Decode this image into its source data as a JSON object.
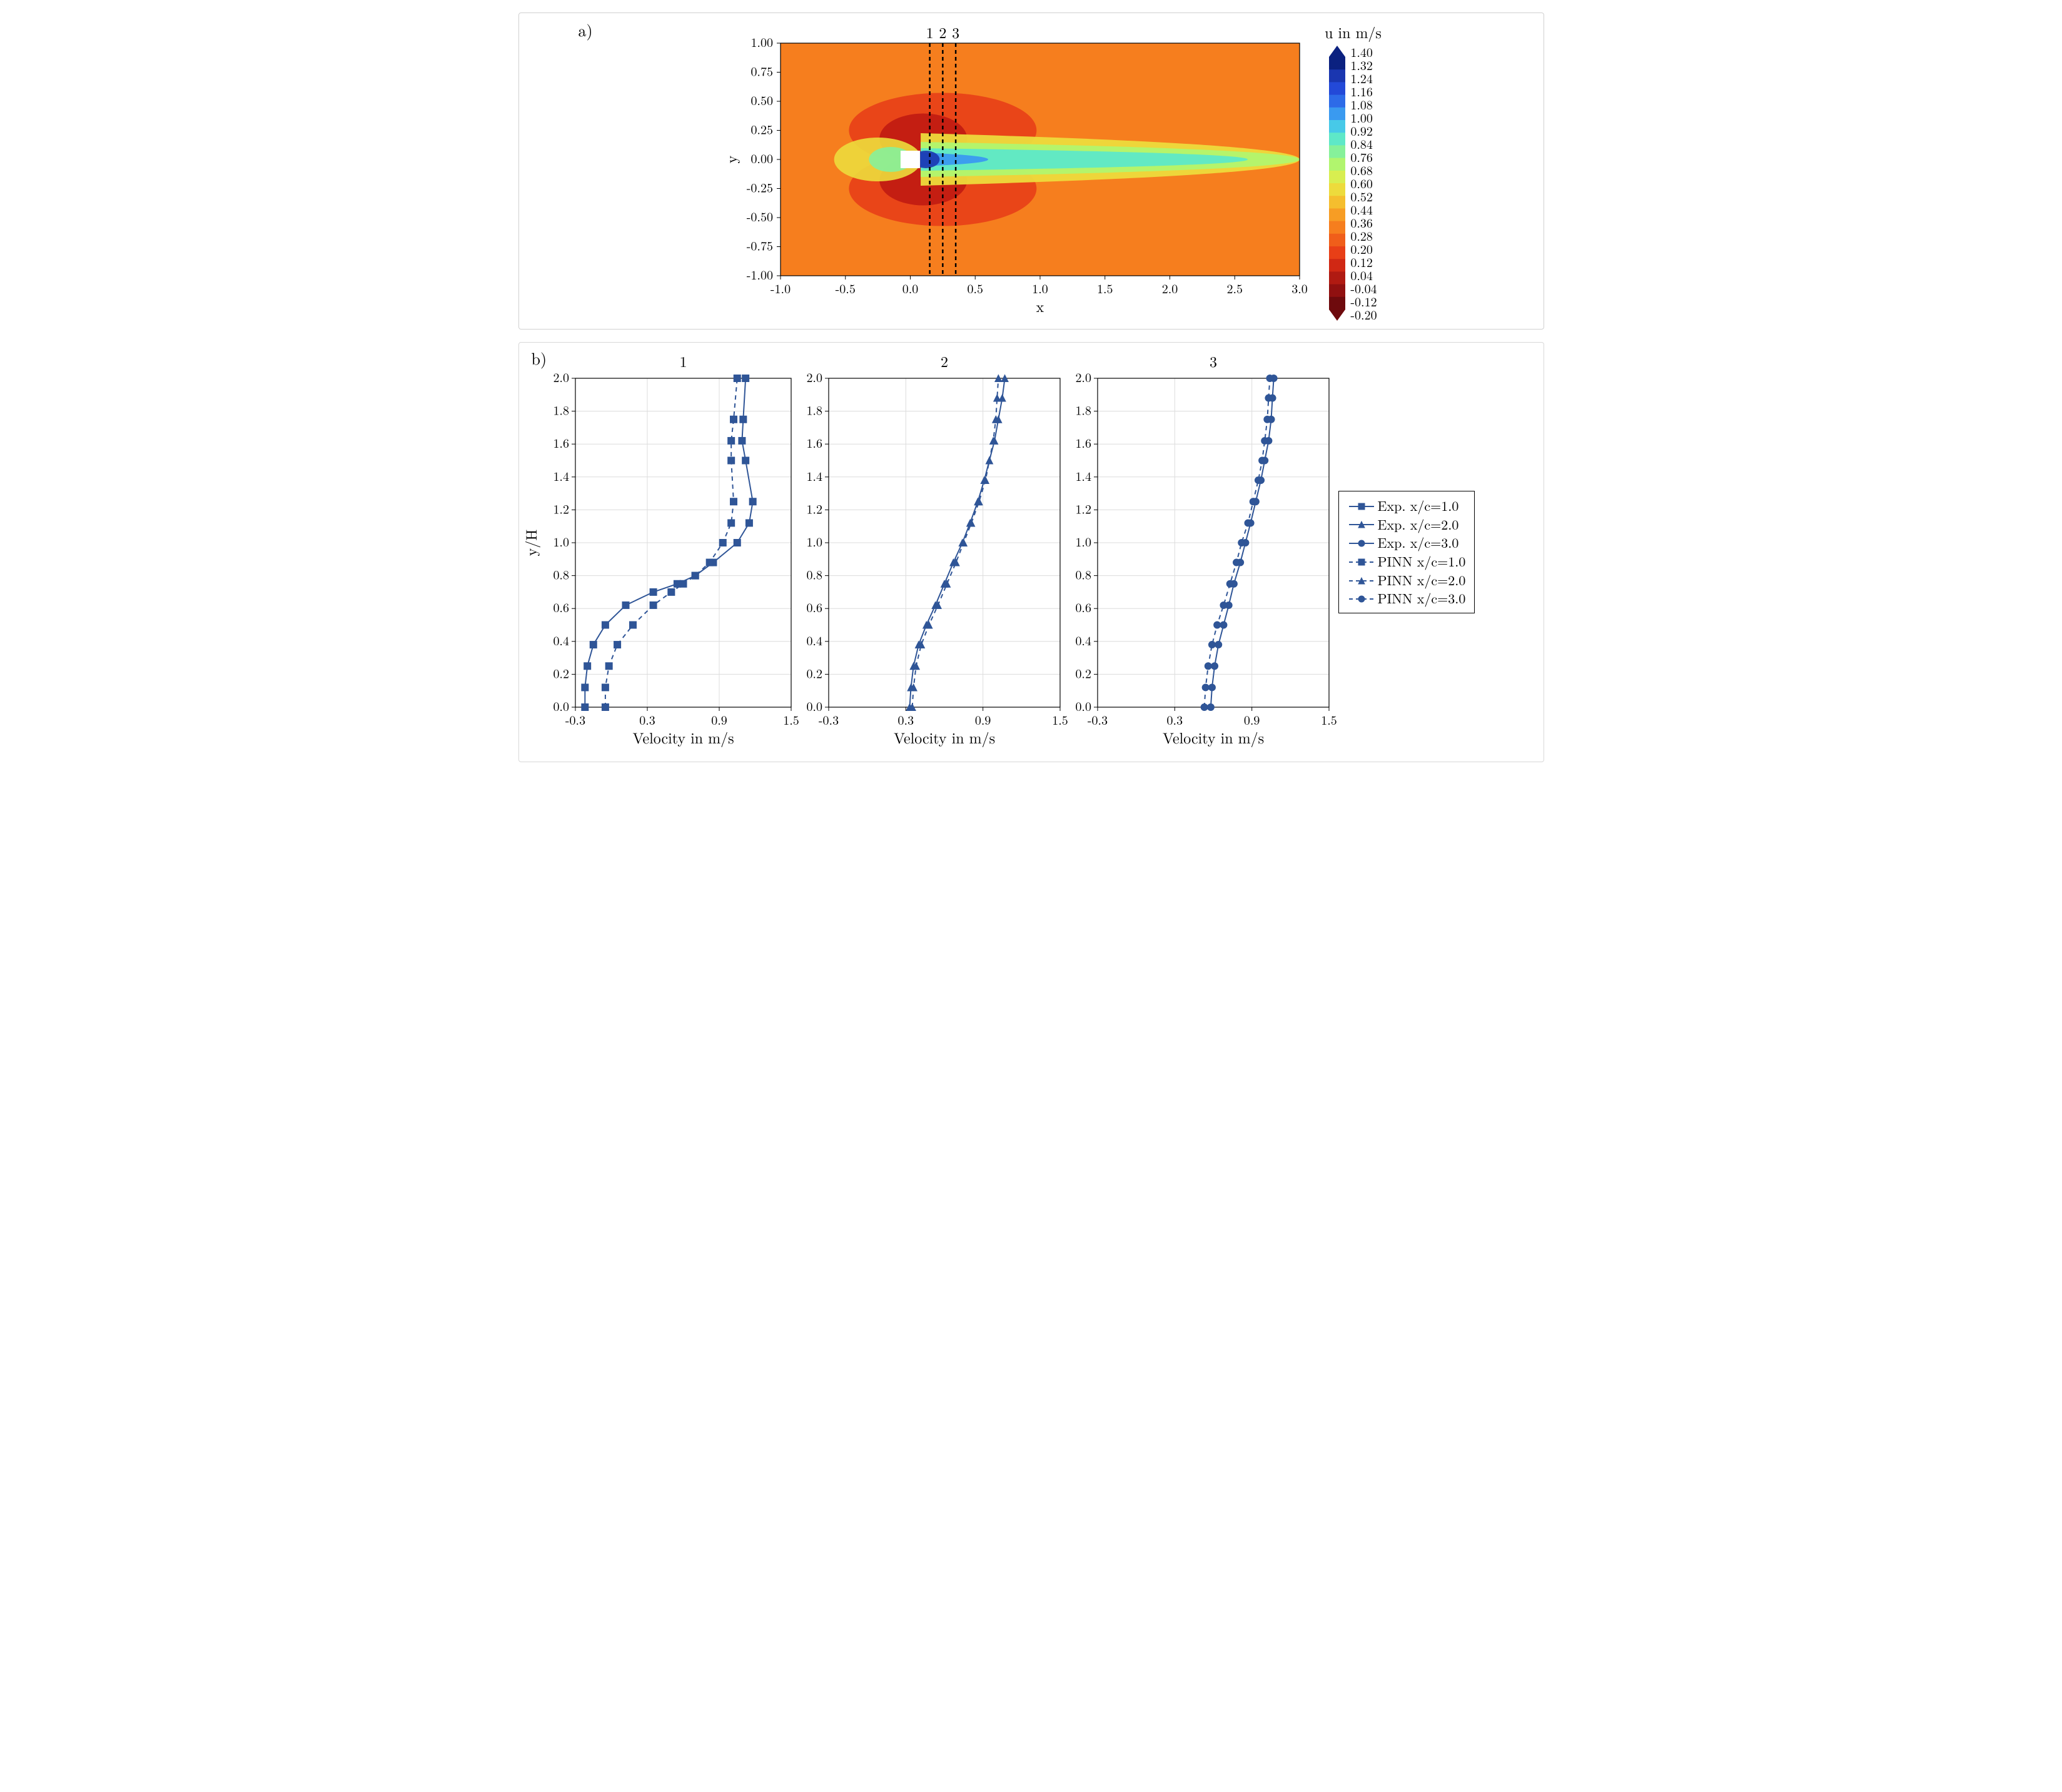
{
  "panel_a": {
    "label": "a)",
    "xlabel": "x",
    "ylabel": "y",
    "xlim": [
      -1.0,
      3.0
    ],
    "ylim": [
      -1.0,
      1.0
    ],
    "xticks": [
      -1.0,
      -0.5,
      0.0,
      0.5,
      1.0,
      1.5,
      2.0,
      2.5,
      3.0
    ],
    "yticks": [
      -1.0,
      -0.75,
      -0.5,
      -0.25,
      0.0,
      0.25,
      0.5,
      0.75,
      1.0
    ],
    "label_fontsize": 24,
    "tick_fontsize": 20,
    "probe_lines": {
      "labels": [
        "1",
        "2",
        "3"
      ],
      "x_positions": [
        0.15,
        0.25,
        0.35
      ],
      "style": "dashed",
      "color": "#000000",
      "linewidth": 2.5
    },
    "square_obstacle": {
      "x": [
        -0.075,
        0.075
      ],
      "y": [
        -0.075,
        0.075
      ],
      "fill": "#ffffff"
    },
    "background_color": "#ffffff"
  },
  "colorbar": {
    "title": "u in m/s",
    "vmin": -0.2,
    "vmax": 1.4,
    "ticks": [
      1.4,
      1.32,
      1.24,
      1.16,
      1.08,
      1.0,
      0.92,
      0.84,
      0.76,
      0.68,
      0.6,
      0.52,
      0.44,
      0.36,
      0.28,
      0.2,
      0.12,
      0.04,
      -0.04,
      -0.12,
      -0.2
    ],
    "title_fontsize": 24,
    "tick_fontsize": 20,
    "colors": [
      "#0b2180",
      "#1a36b0",
      "#2349d8",
      "#2d6be8",
      "#3a9af0",
      "#47c9e8",
      "#5ee8c8",
      "#86f19a",
      "#b1f56e",
      "#d8ee50",
      "#eddb3c",
      "#f5be2e",
      "#f79d24",
      "#f67e1e",
      "#f05e1a",
      "#e83f17",
      "#d02814",
      "#b01a12",
      "#901010",
      "#6e0a0d"
    ]
  },
  "panel_b": {
    "label": "b)",
    "xlabel": "Velocity in m/s",
    "ylabel": "y/H",
    "xlim": [
      -0.3,
      1.5
    ],
    "ylim": [
      0.0,
      2.0
    ],
    "xticks": [
      -0.3,
      0.3,
      0.9,
      1.5
    ],
    "yticks": [
      0.0,
      0.2,
      0.4,
      0.6,
      0.8,
      1.0,
      1.2,
      1.4,
      1.6,
      1.8,
      2.0
    ],
    "xlabel_fontsize": 24,
    "ylabel_fontsize": 24,
    "tick_fontsize": 20,
    "grid_color": "#dcdcdc",
    "series_color": "#2f5597",
    "linewidth": 2.0,
    "marker_size": 7,
    "subplots": [
      {
        "title": "1",
        "exp": {
          "marker": "square",
          "x": [
            -0.22,
            -0.22,
            -0.2,
            -0.15,
            -0.05,
            0.12,
            0.35,
            0.55,
            0.7,
            0.85,
            1.05,
            1.15,
            1.18,
            1.12,
            1.09,
            1.1,
            1.12
          ],
          "y": [
            0.0,
            0.12,
            0.25,
            0.38,
            0.5,
            0.62,
            0.7,
            0.75,
            0.8,
            0.88,
            1.0,
            1.12,
            1.25,
            1.5,
            1.62,
            1.75,
            2.0
          ]
        },
        "pinn": {
          "marker": "square",
          "x": [
            -0.05,
            -0.05,
            -0.02,
            0.05,
            0.18,
            0.35,
            0.5,
            0.6,
            0.7,
            0.82,
            0.93,
            1.0,
            1.02,
            1.0,
            1.0,
            1.02,
            1.05
          ],
          "y": [
            0.0,
            0.12,
            0.25,
            0.38,
            0.5,
            0.62,
            0.7,
            0.75,
            0.8,
            0.88,
            1.0,
            1.12,
            1.25,
            1.5,
            1.62,
            1.75,
            2.0
          ]
        }
      },
      {
        "title": "2",
        "exp": {
          "marker": "triangle",
          "x": [
            0.33,
            0.34,
            0.36,
            0.4,
            0.46,
            0.53,
            0.6,
            0.67,
            0.74,
            0.8,
            0.86,
            0.91,
            0.95,
            0.99,
            1.02,
            1.05,
            1.07
          ],
          "y": [
            0.0,
            0.12,
            0.25,
            0.38,
            0.5,
            0.62,
            0.75,
            0.88,
            1.0,
            1.12,
            1.25,
            1.38,
            1.5,
            1.62,
            1.75,
            1.88,
            2.0
          ]
        },
        "pinn": {
          "marker": "triangle",
          "x": [
            0.35,
            0.36,
            0.38,
            0.42,
            0.48,
            0.55,
            0.62,
            0.69,
            0.75,
            0.81,
            0.87,
            0.92,
            0.95,
            0.98,
            1.0,
            1.01,
            1.02
          ],
          "y": [
            0.0,
            0.12,
            0.25,
            0.38,
            0.5,
            0.62,
            0.75,
            0.88,
            1.0,
            1.12,
            1.25,
            1.38,
            1.5,
            1.62,
            1.75,
            1.88,
            2.0
          ]
        }
      },
      {
        "title": "3",
        "exp": {
          "marker": "circle",
          "x": [
            0.58,
            0.59,
            0.61,
            0.64,
            0.68,
            0.72,
            0.76,
            0.81,
            0.85,
            0.89,
            0.93,
            0.97,
            1.0,
            1.03,
            1.05,
            1.06,
            1.07
          ],
          "y": [
            0.0,
            0.12,
            0.25,
            0.38,
            0.5,
            0.62,
            0.75,
            0.88,
            1.0,
            1.12,
            1.25,
            1.38,
            1.5,
            1.62,
            1.75,
            1.88,
            2.0
          ]
        },
        "pinn": {
          "marker": "circle",
          "x": [
            0.53,
            0.54,
            0.56,
            0.59,
            0.63,
            0.68,
            0.73,
            0.78,
            0.82,
            0.87,
            0.91,
            0.95,
            0.98,
            1.0,
            1.02,
            1.03,
            1.04
          ],
          "y": [
            0.0,
            0.12,
            0.25,
            0.38,
            0.5,
            0.62,
            0.75,
            0.88,
            1.0,
            1.12,
            1.25,
            1.38,
            1.5,
            1.62,
            1.75,
            1.88,
            2.0
          ]
        }
      }
    ]
  },
  "legend": {
    "items": [
      {
        "label": "Exp. x/c=1.0",
        "marker": "square",
        "dash": "solid"
      },
      {
        "label": "Exp. x/c=2.0",
        "marker": "triangle",
        "dash": "solid"
      },
      {
        "label": "Exp. x/c=3.0",
        "marker": "circle",
        "dash": "solid"
      },
      {
        "label": "PINN x/c=1.0",
        "marker": "square",
        "dash": "dashed"
      },
      {
        "label": "PINN x/c=2.0",
        "marker": "triangle",
        "dash": "dashed"
      },
      {
        "label": "PINN x/c=3.0",
        "marker": "circle",
        "dash": "dashed"
      }
    ],
    "fontsize": 22,
    "color": "#2f5597"
  }
}
